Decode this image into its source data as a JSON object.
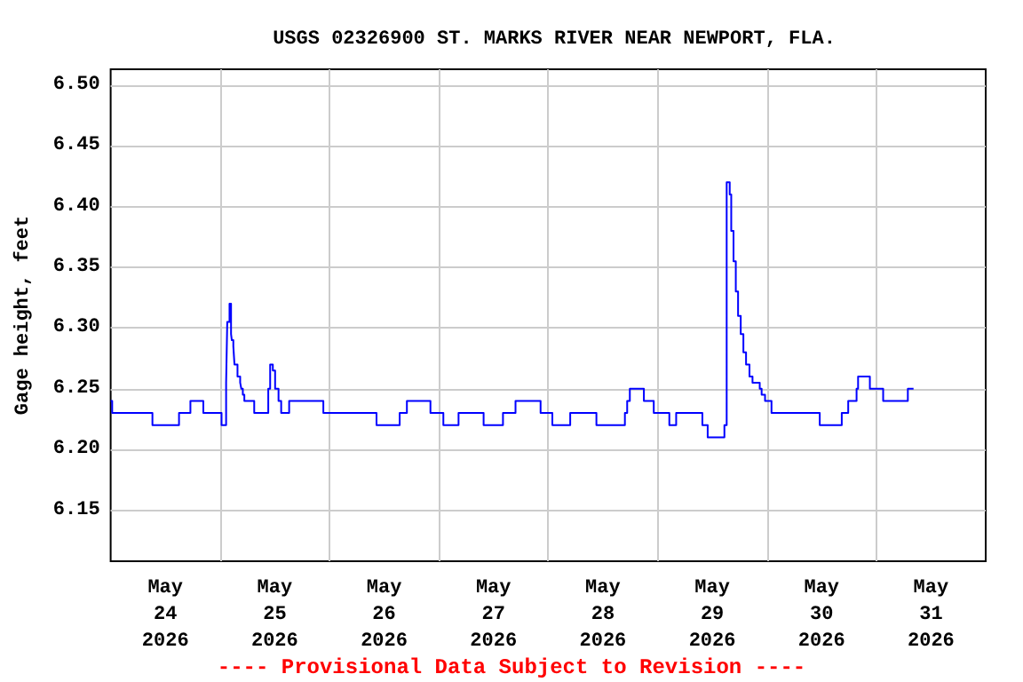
{
  "chart_data": {
    "type": "step",
    "title": "USGS 02326900 ST. MARKS RIVER NEAR NEWPORT, FLA.",
    "ylabel": "Gage height, feet",
    "annotations": [
      "---- Provisional Data Subject to Revision ----"
    ],
    "x": [
      "2026-05-24T00:00",
      "2026-05-24T00:20",
      "2026-05-24T09:10",
      "2026-05-24T15:00",
      "2026-05-24T17:30",
      "2026-05-24T20:20",
      "2026-05-25T00:20",
      "2026-05-25T01:20",
      "2026-05-25T01:35",
      "2026-05-25T02:05",
      "2026-05-25T02:25",
      "2026-05-25T02:35",
      "2026-05-25T02:55",
      "2026-05-25T03:10",
      "2026-05-25T03:50",
      "2026-05-25T04:25",
      "2026-05-25T04:40",
      "2026-05-25T05:00",
      "2026-05-25T05:20",
      "2026-05-25T07:30",
      "2026-05-25T10:35",
      "2026-05-25T11:00",
      "2026-05-25T11:35",
      "2026-05-25T12:05",
      "2026-05-25T12:50",
      "2026-05-25T13:25",
      "2026-05-25T15:10",
      "2026-05-25T22:40",
      "2026-05-26T10:20",
      "2026-05-26T15:25",
      "2026-05-26T17:00",
      "2026-05-26T22:10",
      "2026-05-27T01:00",
      "2026-05-27T04:20",
      "2026-05-27T09:50",
      "2026-05-27T14:05",
      "2026-05-27T16:50",
      "2026-05-27T22:20",
      "2026-05-28T00:55",
      "2026-05-28T04:50",
      "2026-05-28T10:35",
      "2026-05-28T16:50",
      "2026-05-28T17:20",
      "2026-05-28T17:55",
      "2026-05-28T21:00",
      "2026-05-28T23:10",
      "2026-05-29T02:35",
      "2026-05-29T04:05",
      "2026-05-29T09:50",
      "2026-05-29T11:00",
      "2026-05-29T14:40",
      "2026-05-29T15:10",
      "2026-05-29T15:50",
      "2026-05-29T16:10",
      "2026-05-29T16:40",
      "2026-05-29T17:10",
      "2026-05-29T17:40",
      "2026-05-29T18:15",
      "2026-05-29T18:50",
      "2026-05-29T19:25",
      "2026-05-29T20:10",
      "2026-05-29T20:50",
      "2026-05-29T22:25",
      "2026-05-29T22:50",
      "2026-05-29T23:35",
      "2026-05-30T01:00",
      "2026-05-30T11:35",
      "2026-05-30T16:25",
      "2026-05-30T17:50",
      "2026-05-30T19:40",
      "2026-05-30T20:00",
      "2026-05-30T22:35",
      "2026-05-31T01:30",
      "2026-05-31T06:55",
      "2026-05-31T08:10"
    ],
    "series": [
      {
        "color": "#0000ff",
        "values": [
          6.24,
          6.23,
          6.22,
          6.23,
          6.24,
          6.23,
          6.22,
          6.255,
          6.305,
          6.32,
          6.295,
          6.29,
          6.285,
          6.27,
          6.26,
          6.255,
          6.25,
          6.245,
          6.24,
          6.23,
          6.25,
          6.27,
          6.265,
          6.25,
          6.24,
          6.23,
          6.24,
          6.23,
          6.22,
          6.23,
          6.24,
          6.23,
          6.22,
          6.23,
          6.22,
          6.23,
          6.24,
          6.23,
          6.22,
          6.23,
          6.22,
          6.23,
          6.24,
          6.25,
          6.24,
          6.23,
          6.22,
          6.23,
          6.22,
          6.21,
          6.22,
          6.42,
          6.41,
          6.38,
          6.355,
          6.33,
          6.31,
          6.295,
          6.28,
          6.27,
          6.26,
          6.255,
          6.25,
          6.245,
          6.24,
          6.23,
          6.22,
          6.23,
          6.24,
          6.25,
          6.26,
          6.25,
          6.24,
          6.25,
          6.25
        ]
      }
    ],
    "xlim": [
      "2026-05-24T00:00",
      "2026-06-01T00:00"
    ],
    "xticks": [
      {
        "value": "2026-05-24T12:00",
        "label": "May 24 2026"
      },
      {
        "value": "2026-05-25T00:00",
        "label": null
      },
      {
        "value": "2026-05-25T12:00",
        "label": "May 25 2026"
      },
      {
        "value": "2026-05-26T00:00",
        "label": null
      },
      {
        "value": "2026-05-26T12:00",
        "label": "May 26 2026"
      },
      {
        "value": "2026-05-27T00:00",
        "label": null
      },
      {
        "value": "2026-05-27T12:00",
        "label": "May 27 2026"
      },
      {
        "value": "2026-05-28T00:00",
        "label": null
      },
      {
        "value": "2026-05-28T12:00",
        "label": "May 28 2026"
      },
      {
        "value": "2026-05-29T00:00",
        "label": null
      },
      {
        "value": "2026-05-29T12:00",
        "label": "May 29 2026"
      },
      {
        "value": "2026-05-30T00:00",
        "label": null
      },
      {
        "value": "2026-05-30T12:00",
        "label": "May 30 2026"
      },
      {
        "value": "2026-05-31T00:00",
        "label": null
      },
      {
        "value": "2026-05-31T12:00",
        "label": "May 31 2026"
      }
    ],
    "ylim": [
      6.108,
      6.513
    ],
    "yticks": [
      {
        "value": 6.15,
        "label": "6.15"
      },
      {
        "value": 6.2,
        "label": "6.20"
      },
      {
        "value": 6.25,
        "label": "6.25"
      },
      {
        "value": 6.3,
        "label": "6.30"
      },
      {
        "value": 6.35,
        "label": "6.35"
      },
      {
        "value": 6.4,
        "label": "6.40"
      },
      {
        "value": 6.45,
        "label": "6.45"
      },
      {
        "value": 6.5,
        "label": "6.50"
      }
    ],
    "grid": true,
    "marker": "none",
    "line_style": "solid"
  }
}
